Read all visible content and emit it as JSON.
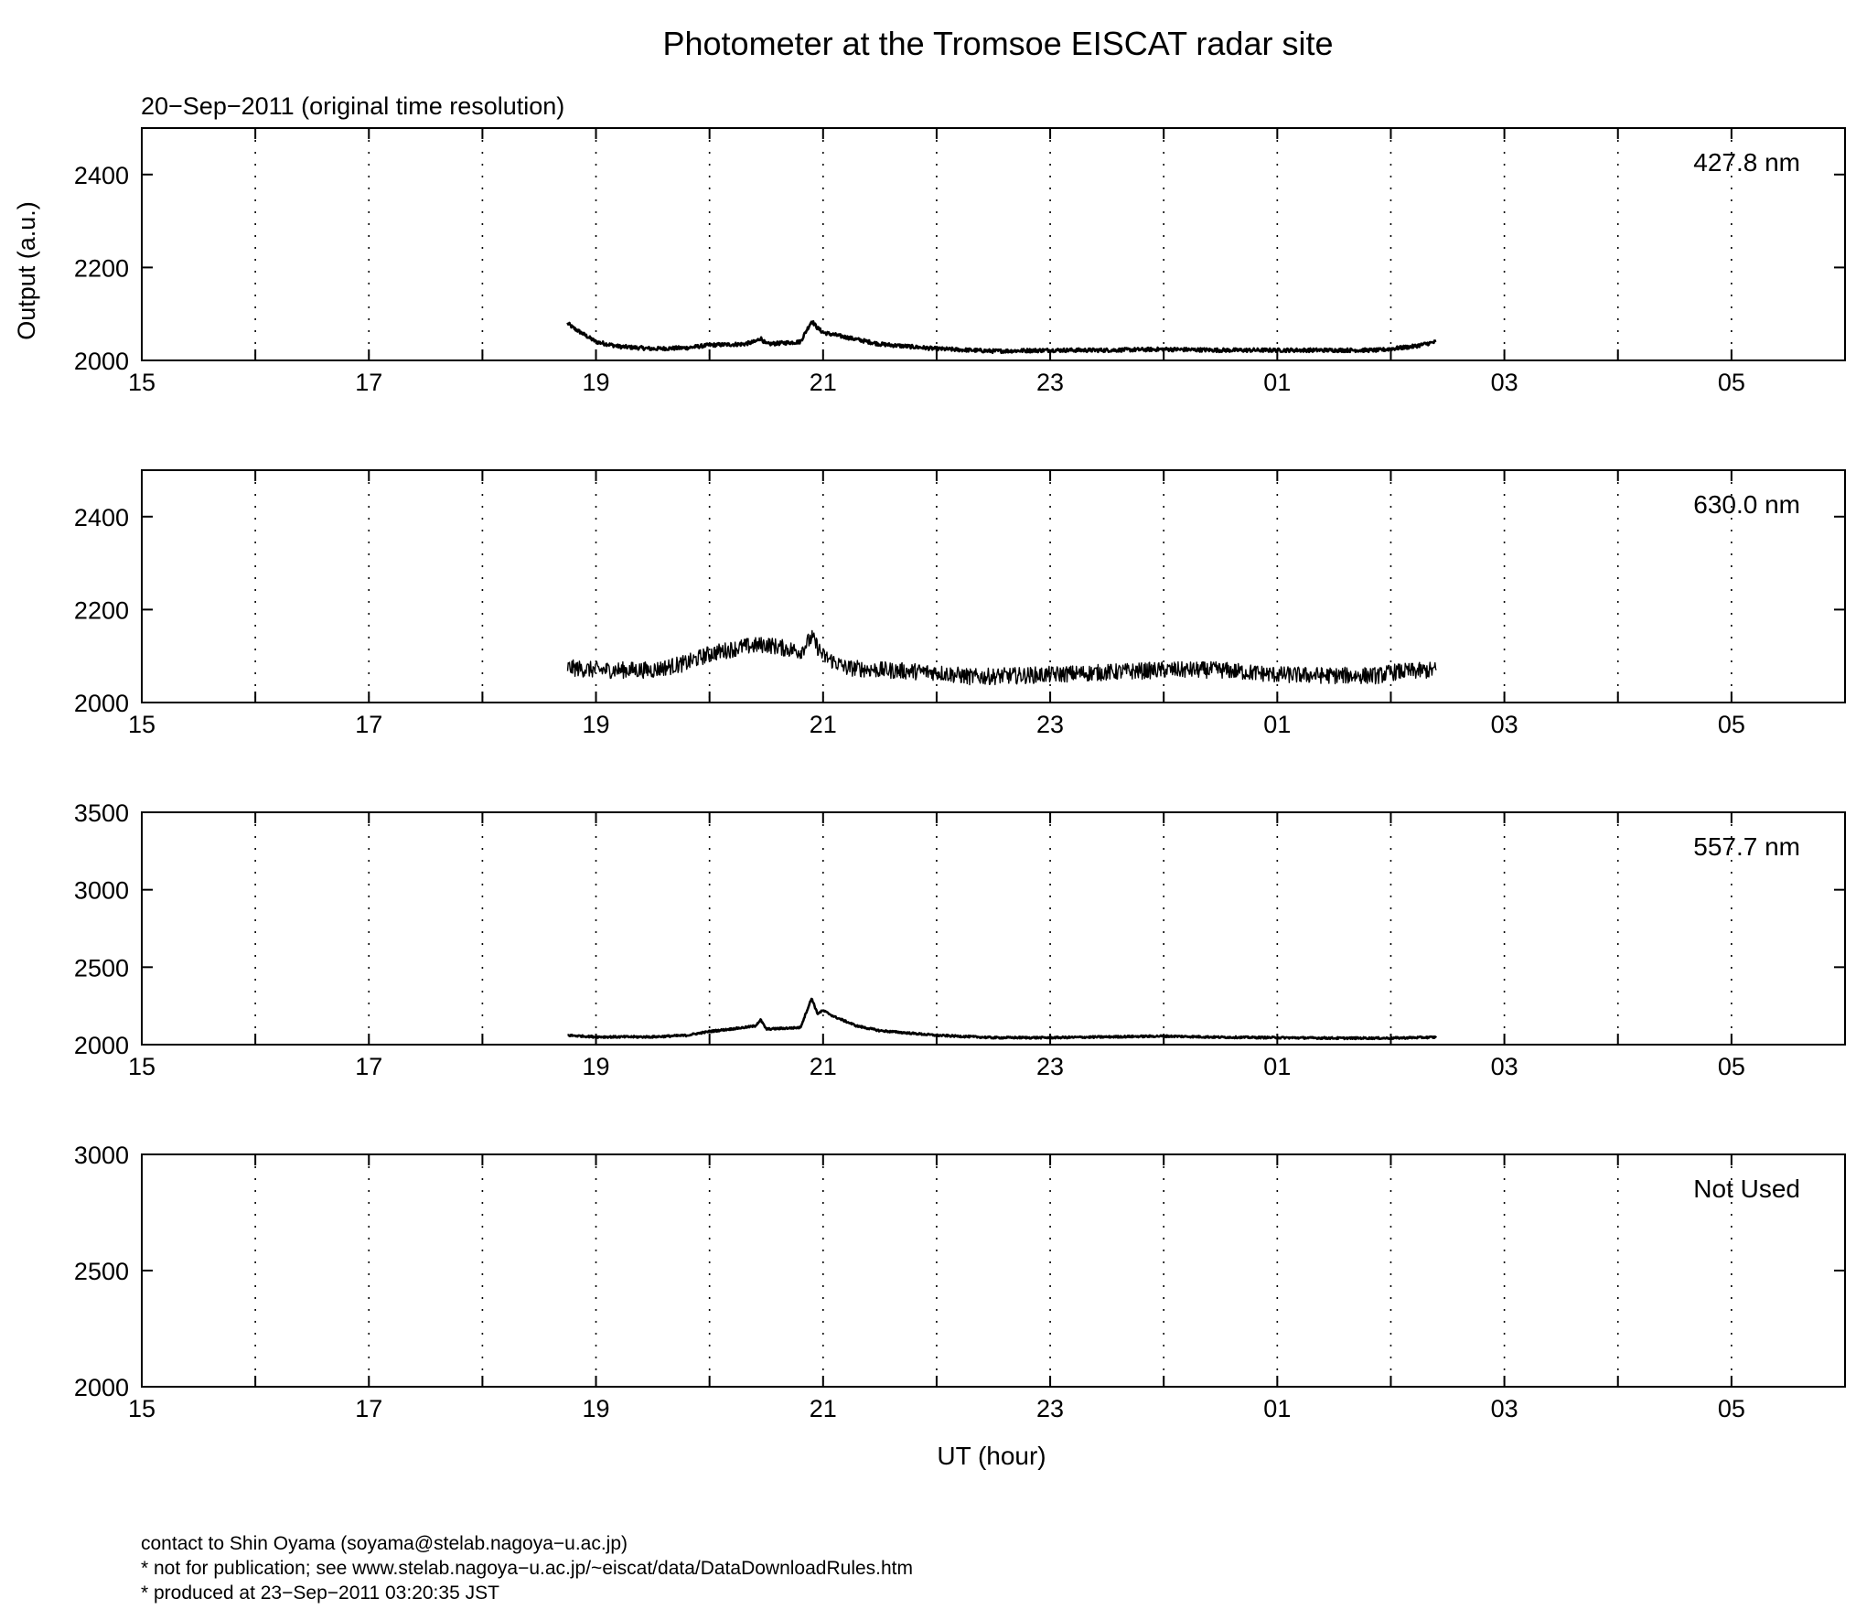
{
  "title": "Photometer at the Tromsoe EISCAT radar site",
  "subtitle": "20−Sep−2011 (original time resolution)",
  "ylabel": "Output (a.u.)",
  "xlabel": "UT (hour)",
  "footer": [
    "contact to Shin Oyama (soyama@stelab.nagoya−u.ac.jp)",
    "* not for publication; see www.stelab.nagoya−u.ac.jp/~eiscat/data/DataDownloadRules.htm",
    "* produced at 23−Sep−2011 03:20:35 JST"
  ],
  "chart_data": [
    {
      "type": "line",
      "label": "427.8 nm",
      "ylim": [
        2000,
        2500
      ],
      "yticks": [
        "2000",
        "2200",
        "2400"
      ],
      "xlim": [
        15,
        30
      ],
      "xticks": [
        "15",
        "17",
        "19",
        "21",
        "23",
        "01",
        "03",
        "05"
      ],
      "grid": "dotted vertical at every hour",
      "color": "#000000",
      "noise": 4,
      "x": [
        18.75,
        18.8,
        18.9,
        19.0,
        19.2,
        19.5,
        19.8,
        20.0,
        20.3,
        20.4,
        20.45,
        20.5,
        20.8,
        20.9,
        20.95,
        21.0,
        21.1,
        21.3,
        21.5,
        22.0,
        22.5,
        23.0,
        23.5,
        24.0,
        24.5,
        25.0,
        25.5,
        25.9,
        26.0,
        26.2,
        26.4
      ],
      "y": [
        2080,
        2070,
        2055,
        2040,
        2030,
        2025,
        2027,
        2033,
        2035,
        2040,
        2048,
        2035,
        2040,
        2085,
        2070,
        2060,
        2055,
        2045,
        2035,
        2025,
        2020,
        2022,
        2022,
        2024,
        2022,
        2022,
        2022,
        2022,
        2025,
        2030,
        2040
      ]
    },
    {
      "type": "line",
      "label": "630.0 nm",
      "ylim": [
        2000,
        2500
      ],
      "yticks": [
        "2000",
        "2200",
        "2400"
      ],
      "xlim": [
        15,
        30
      ],
      "xticks": [
        "15",
        "17",
        "19",
        "21",
        "23",
        "01",
        "03",
        "05"
      ],
      "grid": "dotted vertical at every hour",
      "color": "#000000",
      "noise": 18,
      "x": [
        18.75,
        19.0,
        19.5,
        19.8,
        20.0,
        20.3,
        20.5,
        20.8,
        20.9,
        21.0,
        21.2,
        21.5,
        22.0,
        22.3,
        23.0,
        23.5,
        24.0,
        24.5,
        25.0,
        25.5,
        25.9,
        26.0,
        26.4
      ],
      "y": [
        2075,
        2070,
        2070,
        2085,
        2105,
        2120,
        2125,
        2110,
        2140,
        2100,
        2075,
        2070,
        2065,
        2055,
        2060,
        2065,
        2070,
        2070,
        2060,
        2058,
        2058,
        2065,
        2070
      ]
    },
    {
      "type": "line",
      "label": "557.7 nm",
      "ylim": [
        2000,
        3500
      ],
      "yticks": [
        "2000",
        "2500",
        "3000",
        "3500"
      ],
      "xlim": [
        15,
        30
      ],
      "xticks": [
        "15",
        "17",
        "19",
        "21",
        "23",
        "01",
        "03",
        "05"
      ],
      "grid": "dotted vertical at every hour",
      "color": "#000000",
      "noise": 6,
      "x": [
        18.75,
        19.0,
        19.5,
        19.8,
        20.0,
        20.3,
        20.4,
        20.45,
        20.5,
        20.8,
        20.9,
        20.95,
        21.0,
        21.1,
        21.3,
        21.5,
        22.0,
        22.5,
        23.0,
        23.5,
        24.0,
        24.5,
        25.0,
        25.5,
        26.0,
        26.4
      ],
      "y": [
        2060,
        2050,
        2050,
        2060,
        2085,
        2110,
        2120,
        2160,
        2100,
        2110,
        2300,
        2200,
        2220,
        2180,
        2120,
        2090,
        2060,
        2045,
        2045,
        2050,
        2055,
        2048,
        2045,
        2042,
        2042,
        2048
      ]
    },
    {
      "type": "line",
      "label": "Not Used",
      "ylim": [
        2000,
        3000
      ],
      "yticks": [
        "2000",
        "2500",
        "3000"
      ],
      "xlim": [
        15,
        30
      ],
      "xticks": [
        "15",
        "17",
        "19",
        "21",
        "23",
        "01",
        "03",
        "05"
      ],
      "grid": "dotted vertical at every hour",
      "color": "#000000",
      "noise": 0,
      "x": [],
      "y": []
    }
  ]
}
